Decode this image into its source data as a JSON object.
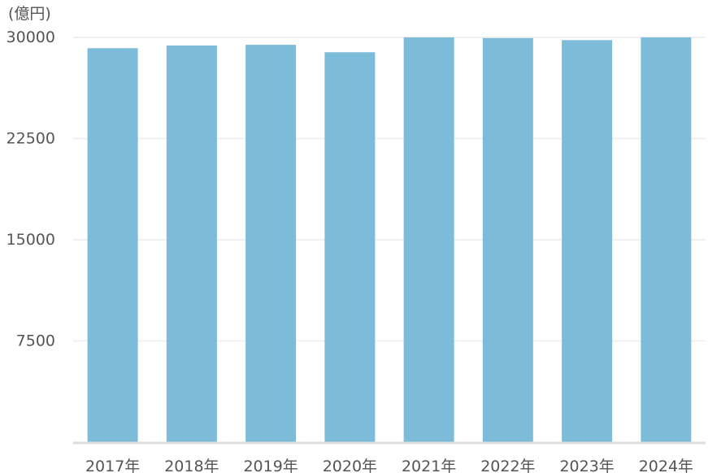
{
  "chart_data": {
    "type": "bar",
    "unit_label": "(億円)",
    "categories": [
      "2017年",
      "2018年",
      "2019年",
      "2020年",
      "2021年",
      "2022年",
      "2023年",
      "2024年"
    ],
    "series": [
      {
        "values": [
          29200,
          29400,
          29450,
          28900,
          30000,
          29950,
          29800,
          30000
        ]
      }
    ],
    "ylim": [
      0,
      31000
    ],
    "yticks": [
      7500,
      15000,
      22500,
      30000
    ],
    "ytick_labels": [
      "7500",
      "15000",
      "22500",
      "30000"
    ],
    "grid": true,
    "bar_color": "#7dbcd9",
    "grid_color": "#f0f0f0",
    "axis_color": "#dddddd",
    "text_color": "#555555"
  }
}
